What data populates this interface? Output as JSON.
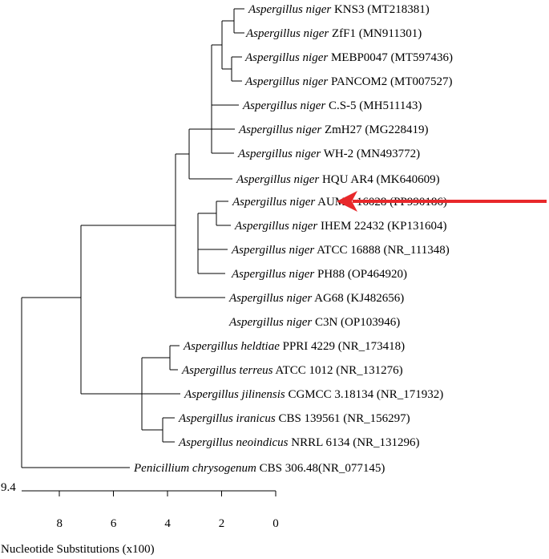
{
  "tree": {
    "taxa": [
      {
        "genus": "Aspergillus niger",
        "strain": "KNS3 (MT218381)"
      },
      {
        "genus": "Aspergillus niger",
        "strain": "ZfF1 (MN911301)"
      },
      {
        "genus": "Aspergillus niger",
        "strain": "MEBP0047 (MT597436)"
      },
      {
        "genus": "Aspergillus niger",
        "strain": "PANCOM2 (MT007527)"
      },
      {
        "genus": "Aspergillus niger",
        "strain": "C.S-5 (MH511143)"
      },
      {
        "genus": "Aspergillus niger",
        "strain": "ZmH27 (MG228419)"
      },
      {
        "genus": "Aspergillus niger",
        "strain": "WH-2 (MN493772)"
      },
      {
        "genus": "Aspergillus niger",
        "strain": "HQU AR4 (MK640609)"
      },
      {
        "genus": "Aspergillus niger",
        "strain": "AUMC 16028 (PP990186)"
      },
      {
        "genus": "Aspergillus niger",
        "strain": "IHEM 22432 (KP131604)"
      },
      {
        "genus": "Aspergillus niger",
        "strain": "ATCC 16888 (NR_111348)"
      },
      {
        "genus": "Aspergillus niger",
        "strain": "PH88 (OP464920)"
      },
      {
        "genus": "Aspergillus niger",
        "strain": "AG68 (KJ482656)"
      },
      {
        "genus": "Aspergillus niger",
        "strain": "C3N (OP103946)"
      },
      {
        "genus": "Aspergillus heldtiae",
        "strain": "PPRI 4229 (NR_173418)"
      },
      {
        "genus": "Aspergillus terreus",
        "strain": "ATCC 1012 (NR_131276)"
      },
      {
        "genus": "Aspergillus jilinensis",
        "strain": "CGMCC 3.18134 (NR_171932)"
      },
      {
        "genus": "Aspergillus iranicus",
        "strain": "CBS 139561 (NR_156297)"
      },
      {
        "genus": "Aspergillus neoindicus",
        "strain": "NRRL 6134 (NR_131296)"
      },
      {
        "genus": "Penicillium chrysogenum",
        "strain": "CBS 306.48(NR_077145)"
      }
    ],
    "highlighted_taxon_index": 8,
    "highlight_arrow_color": "#e8282b"
  },
  "scale": {
    "max_value": "9.4",
    "ticks": [
      "8",
      "6",
      "4",
      "2",
      "0"
    ],
    "label": "Nucleotide Substitutions (x100)"
  }
}
